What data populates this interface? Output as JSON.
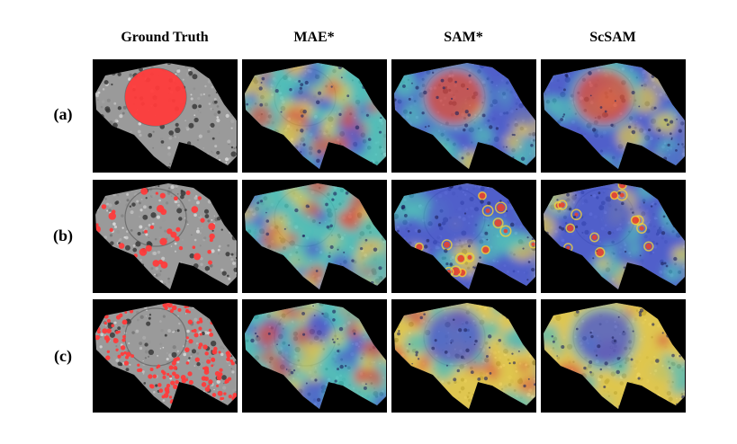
{
  "figure": {
    "columns": [
      {
        "label": "Ground Truth",
        "kind": "gt"
      },
      {
        "label": "MAE*",
        "kind": "mae"
      },
      {
        "label": "SAM*",
        "kind": "sam"
      },
      {
        "label": "ScSAM",
        "kind": "scsam"
      }
    ],
    "rows": [
      {
        "label": "(a)",
        "target": "nucleus"
      },
      {
        "label": "(b)",
        "target": "vesicles-large"
      },
      {
        "label": "(c)",
        "target": "vesicles-small"
      }
    ]
  },
  "colors": {
    "mask": "#ff3b3b",
    "cell_gray": "#9a9a9a",
    "heat_low": "#3b4fd8",
    "heat_mid": "#3fc7c0",
    "heat_high": "#f2d23a",
    "heat_peak": "#e8432c"
  }
}
